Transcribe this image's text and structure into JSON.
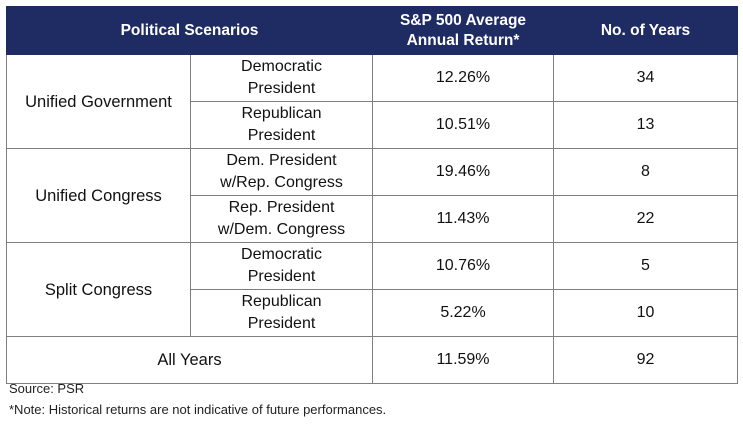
{
  "chart_data": {
    "type": "table",
    "columns": [
      "Political Scenarios",
      "S&P 500 Average\nAnnual Return*",
      "No. of Years"
    ],
    "groups": [
      {
        "scenario": "Unified Government",
        "rows": [
          {
            "sub": "Democratic\nPresident",
            "return": "12.26%",
            "years": "34"
          },
          {
            "sub": "Republican\nPresident",
            "return": "10.51%",
            "years": "13"
          }
        ]
      },
      {
        "scenario": "Unified Congress",
        "rows": [
          {
            "sub": "Dem. President\nw/Rep. Congress",
            "return": "19.46%",
            "years": "8"
          },
          {
            "sub": "Rep. President\nw/Dem. Congress",
            "return": "11.43%",
            "years": "22"
          }
        ]
      },
      {
        "scenario": "Split Congress",
        "rows": [
          {
            "sub": "Democratic\nPresident",
            "return": "10.76%",
            "years": "5"
          },
          {
            "sub": "Republican\nPresident",
            "return": "5.22%",
            "years": "10"
          }
        ]
      }
    ],
    "total": {
      "label": "All Years",
      "return": "11.59%",
      "years": "92"
    }
  },
  "footer": {
    "source": "Source: PSR",
    "note": "*Note: Historical returns are not indicative of future performances."
  },
  "colors": {
    "header_bg": "#1f2b63",
    "header_text": "#ffffff",
    "border": "#7f7f7f"
  }
}
